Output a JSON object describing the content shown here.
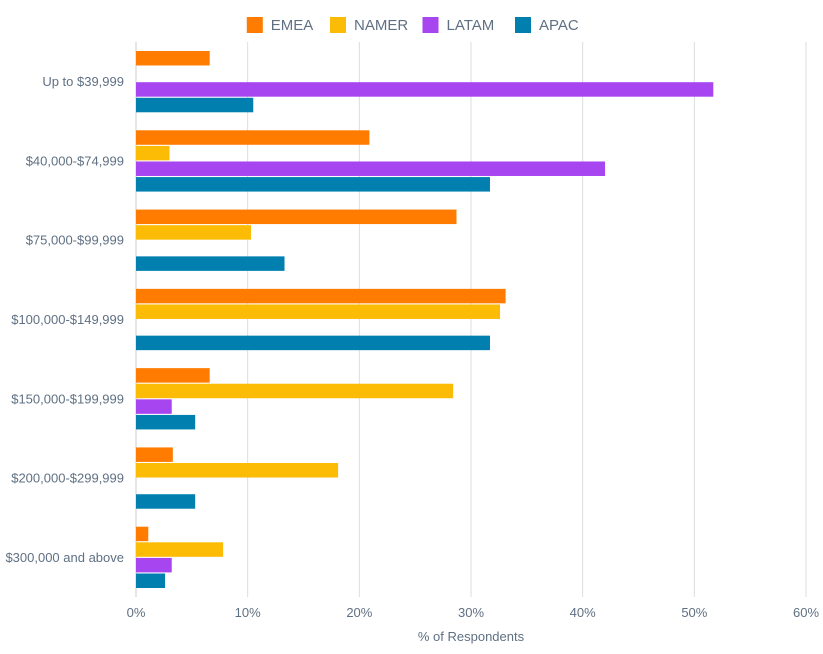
{
  "chart_data": {
    "type": "bar",
    "orientation": "horizontal",
    "categories": [
      "Up to $39,999",
      "$40,000-$74,999",
      "$75,000-$99,999",
      "$100,000-$149,999",
      "$150,000-$199,999",
      "$200,000-$299,999",
      "$300,000 and above"
    ],
    "series": [
      {
        "name": "EMEA",
        "color": "#ff7c00",
        "values": [
          6.6,
          20.9,
          28.7,
          33.1,
          6.6,
          3.3,
          1.1
        ]
      },
      {
        "name": "NAMER",
        "color": "#fcbc05",
        "values": [
          0,
          3.0,
          10.3,
          32.6,
          28.4,
          18.1,
          7.8
        ]
      },
      {
        "name": "LATAM",
        "color": "#a745f0",
        "values": [
          51.7,
          42.0,
          0,
          0,
          3.2,
          0,
          3.2
        ]
      },
      {
        "name": "APAC",
        "color": "#0180b0",
        "values": [
          10.5,
          31.7,
          13.3,
          31.7,
          5.3,
          5.3,
          2.6
        ]
      }
    ],
    "xlabel": "% of Respondents",
    "ylabel": "",
    "xlim": [
      0,
      60
    ],
    "xticks": [
      "0%",
      "10%",
      "20%",
      "30%",
      "40%",
      "50%",
      "60%"
    ],
    "grid": true,
    "legend_position": "top"
  }
}
